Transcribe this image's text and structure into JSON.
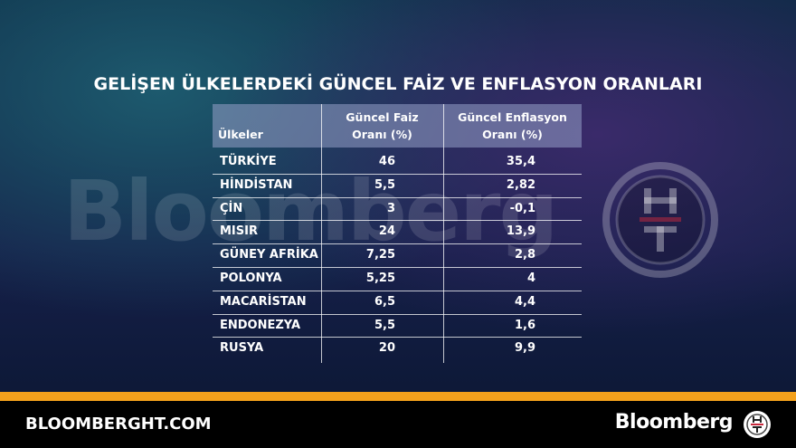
{
  "header": {
    "title": "GELİŞEN ÜLKELERDEKİ GÜNCEL FAİZ VE ENFLASYON ORANLARI"
  },
  "watermark": "Bloomberg",
  "table": {
    "columns": [
      "Ülkeler",
      "Güncel Faiz\nOranı (%)",
      "Güncel Enflasyon\nOranı (%)"
    ],
    "rows": [
      [
        "TÜRKİYE",
        "46",
        "35,4"
      ],
      [
        "HİNDİSTAN",
        "5,5",
        "2,82"
      ],
      [
        "ÇİN",
        "3",
        "-0,1"
      ],
      [
        "MISIR",
        "24",
        "13,9"
      ],
      [
        "GÜNEY AFRİKA",
        "7,25",
        "2,8"
      ],
      [
        "POLONYA",
        "5,25",
        "4"
      ],
      [
        "MACARİSTAN",
        "6,5",
        "4,4"
      ],
      [
        "ENDONEZYA",
        "5,5",
        "1,6"
      ],
      [
        "RUSYA",
        "20",
        "9,9"
      ]
    ]
  },
  "footer": {
    "site": "BLOOMBERGHT.COM",
    "brand": "Bloomberg"
  }
}
